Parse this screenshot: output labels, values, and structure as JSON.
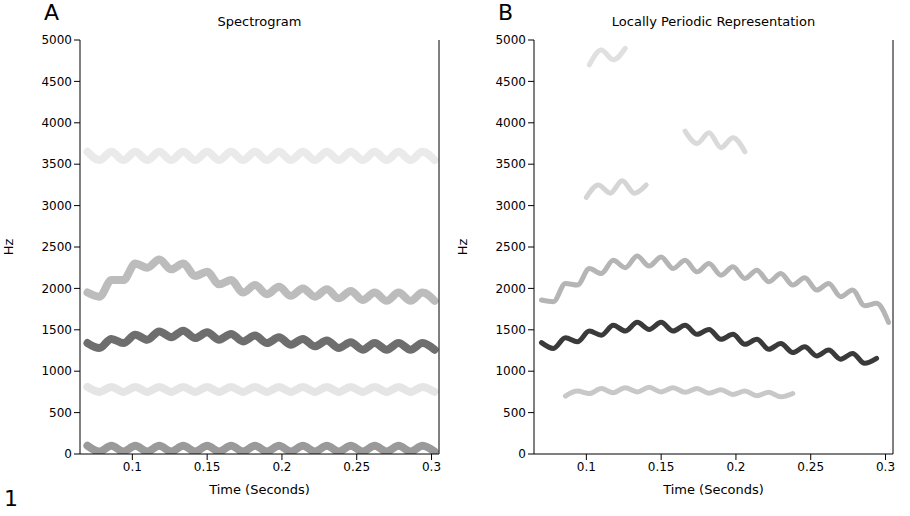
{
  "figure_label": "1",
  "chart_data": [
    {
      "panel": "A",
      "type": "line",
      "title": "Spectrogram",
      "x_label": "Time (Seconds)",
      "y_label": "Hz",
      "xlim": [
        0.065,
        0.305
      ],
      "xticks": [
        0.1,
        0.15,
        0.2,
        0.25,
        0.3
      ],
      "ylim": [
        0,
        5000
      ],
      "yticks": [
        0,
        500,
        1000,
        1500,
        2000,
        2500,
        3000,
        3500,
        4000,
        4500,
        5000
      ],
      "x": [
        0.07,
        0.078,
        0.086,
        0.094,
        0.102,
        0.11,
        0.118,
        0.126,
        0.134,
        0.142,
        0.15,
        0.158,
        0.166,
        0.174,
        0.182,
        0.19,
        0.198,
        0.206,
        0.214,
        0.222,
        0.23,
        0.238,
        0.246,
        0.254,
        0.262,
        0.27,
        0.278,
        0.286,
        0.294,
        0.302
      ],
      "series": [
        {
          "color": "#e6e6e6",
          "values": [
            3650,
            3550,
            3650,
            3550,
            3650,
            3550,
            3650,
            3550,
            3650,
            3550,
            3650,
            3550,
            3650,
            3550,
            3650,
            3550,
            3650,
            3550,
            3650,
            3550,
            3650,
            3550,
            3650,
            3550,
            3650,
            3550,
            3650,
            3550,
            3650,
            3550
          ]
        },
        {
          "color": "#e0e0e0",
          "values": [
            810,
            750,
            810,
            750,
            810,
            750,
            810,
            750,
            810,
            750,
            810,
            750,
            810,
            750,
            810,
            750,
            810,
            750,
            810,
            750,
            810,
            750,
            810,
            750,
            810,
            750,
            810,
            750,
            810,
            750
          ]
        },
        {
          "color": "#b0b0b0",
          "values": [
            1950,
            1900,
            2100,
            2100,
            2300,
            2250,
            2350,
            2230,
            2300,
            2150,
            2200,
            2050,
            2100,
            1950,
            2040,
            1930,
            2020,
            1910,
            2000,
            1900,
            1990,
            1880,
            1970,
            1860,
            1950,
            1850,
            1950,
            1850,
            1950,
            1850
          ]
        },
        {
          "color": "#888888",
          "values": [
            100,
            30,
            100,
            30,
            100,
            30,
            100,
            30,
            100,
            30,
            100,
            30,
            100,
            30,
            100,
            30,
            100,
            30,
            100,
            30,
            100,
            30,
            100,
            30,
            100,
            30,
            100,
            30,
            100,
            30
          ]
        },
        {
          "color": "#555555",
          "values": [
            1340,
            1280,
            1390,
            1340,
            1440,
            1380,
            1480,
            1410,
            1490,
            1400,
            1470,
            1380,
            1450,
            1360,
            1430,
            1340,
            1410,
            1320,
            1390,
            1300,
            1370,
            1280,
            1350,
            1260,
            1340,
            1260,
            1340,
            1260,
            1340,
            1260
          ]
        }
      ]
    },
    {
      "panel": "B",
      "type": "line",
      "title": "Locally Periodic Representation",
      "x_label": "Time (Seconds)",
      "y_label": "Hz",
      "xlim": [
        0.065,
        0.305
      ],
      "xticks": [
        0.1,
        0.15,
        0.2,
        0.25,
        0.3
      ],
      "ylim": [
        0,
        5000
      ],
      "yticks": [
        0,
        500,
        1000,
        1500,
        2000,
        2500,
        3000,
        3500,
        4000,
        4500,
        5000
      ],
      "series": [
        {
          "color": "#e0e0e0",
          "x": [
            0.102,
            0.11,
            0.118,
            0.126
          ],
          "values": [
            4700,
            4880,
            4760,
            4900
          ]
        },
        {
          "color": "#dadada",
          "x": [
            0.166,
            0.174,
            0.182,
            0.19,
            0.198,
            0.206
          ],
          "values": [
            3900,
            3750,
            3880,
            3700,
            3820,
            3650
          ]
        },
        {
          "color": "#d5d5d5",
          "x": [
            0.1,
            0.108,
            0.116,
            0.124,
            0.132,
            0.14
          ],
          "values": [
            3100,
            3250,
            3150,
            3300,
            3150,
            3250
          ]
        },
        {
          "color": "#c8c8c8",
          "x": [
            0.086,
            0.094,
            0.102,
            0.11,
            0.118,
            0.126,
            0.134,
            0.142,
            0.15,
            0.158,
            0.166,
            0.174,
            0.182,
            0.19,
            0.198,
            0.206,
            0.214,
            0.222,
            0.23,
            0.238
          ],
          "values": [
            700,
            760,
            730,
            790,
            740,
            800,
            750,
            805,
            750,
            800,
            745,
            790,
            735,
            775,
            720,
            760,
            705,
            745,
            690,
            730
          ]
        },
        {
          "color": "#b5b5b5",
          "x": [
            0.07,
            0.078,
            0.086,
            0.094,
            0.102,
            0.11,
            0.118,
            0.126,
            0.134,
            0.142,
            0.15,
            0.158,
            0.166,
            0.174,
            0.182,
            0.19,
            0.198,
            0.206,
            0.214,
            0.222,
            0.23,
            0.238,
            0.246,
            0.254,
            0.262,
            0.27,
            0.278,
            0.286,
            0.294,
            0.302
          ],
          "values": [
            1860,
            1840,
            2060,
            2040,
            2240,
            2180,
            2340,
            2250,
            2390,
            2270,
            2380,
            2240,
            2340,
            2200,
            2300,
            2160,
            2260,
            2120,
            2220,
            2080,
            2180,
            2040,
            2130,
            1980,
            2060,
            1900,
            1980,
            1790,
            1820,
            1590
          ]
        },
        {
          "color": "#3a3a3a",
          "x": [
            0.07,
            0.078,
            0.086,
            0.094,
            0.102,
            0.11,
            0.118,
            0.126,
            0.134,
            0.142,
            0.15,
            0.158,
            0.166,
            0.174,
            0.182,
            0.19,
            0.198,
            0.206,
            0.214,
            0.222,
            0.23,
            0.238,
            0.246,
            0.254,
            0.262,
            0.27,
            0.278,
            0.286,
            0.294
          ],
          "values": [
            1345,
            1275,
            1405,
            1355,
            1485,
            1435,
            1555,
            1485,
            1590,
            1505,
            1590,
            1485,
            1555,
            1445,
            1505,
            1385,
            1445,
            1325,
            1385,
            1265,
            1335,
            1225,
            1295,
            1185,
            1255,
            1145,
            1215,
            1095,
            1155
          ]
        }
      ]
    }
  ]
}
